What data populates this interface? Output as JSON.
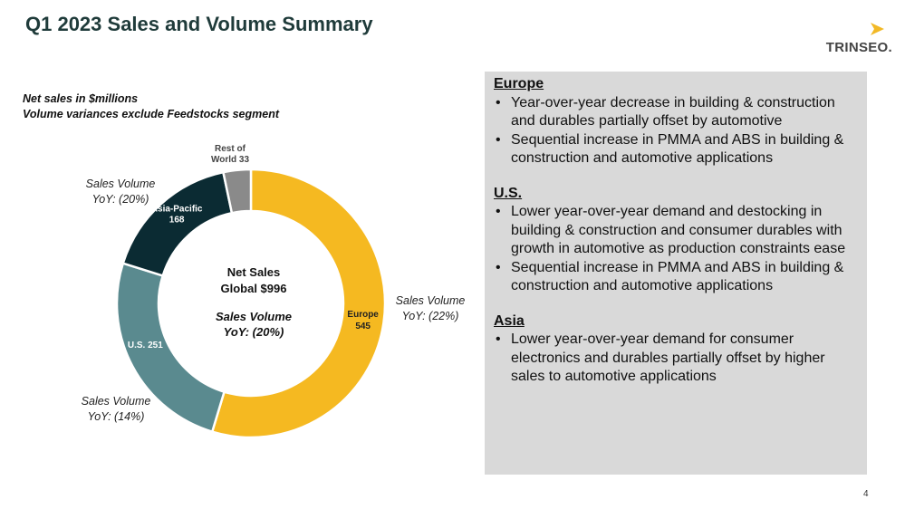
{
  "title": "Q1 2023 Sales and Volume Summary",
  "logo": {
    "text": "TRINSEO.",
    "icon": "chevron-arrow-icon",
    "color": "#f2b926"
  },
  "notes": [
    "Net sales in $millions",
    "Volume variances exclude Feedstocks segment"
  ],
  "chart_data": {
    "type": "pie",
    "donut": true,
    "slices": [
      {
        "label": "Europe",
        "value": 545,
        "color": "#f5b921",
        "label_color": "#222222"
      },
      {
        "label": "U.S.",
        "value": 251,
        "color": "#5a8a8f",
        "label_color": "#ffffff"
      },
      {
        "label": "Asia-Pacific",
        "value": 168,
        "color": "#0b2b33",
        "label_color": "#ffffff"
      },
      {
        "label": "Rest of World",
        "value": 33,
        "color": "#8a8a8a",
        "label_color": "#444444"
      }
    ],
    "center": {
      "line1": "Net Sales",
      "line2": "Global $996",
      "line3": "Sales Volume",
      "line4": "YoY: (20%)"
    },
    "annotations": [
      {
        "line1": "Sales Volume",
        "line2": "YoY: (22%)",
        "region": "Europe"
      },
      {
        "line1": "Sales Volume",
        "line2": "YoY: (14%)",
        "region": "U.S."
      },
      {
        "line1": "Sales Volume",
        "line2": "YoY: (20%)",
        "region": "Asia-Pacific"
      }
    ]
  },
  "regions": [
    {
      "heading": "Europe",
      "bullets": [
        "Year-over-year decrease in building & construction and durables partially offset by automotive",
        "Sequential increase in PMMA and ABS in building & construction and automotive applications"
      ]
    },
    {
      "heading": "U.S.",
      "bullets": [
        "Lower year-over-year demand and destocking in building & construction and consumer durables with growth in automotive as production constraints ease",
        "Sequential increase in PMMA and ABS in building & construction and automotive applications"
      ]
    },
    {
      "heading": "Asia",
      "bullets": [
        "Lower year-over-year demand for consumer electronics and durables partially offset by higher sales to automotive applications"
      ]
    }
  ],
  "page_number": "4"
}
